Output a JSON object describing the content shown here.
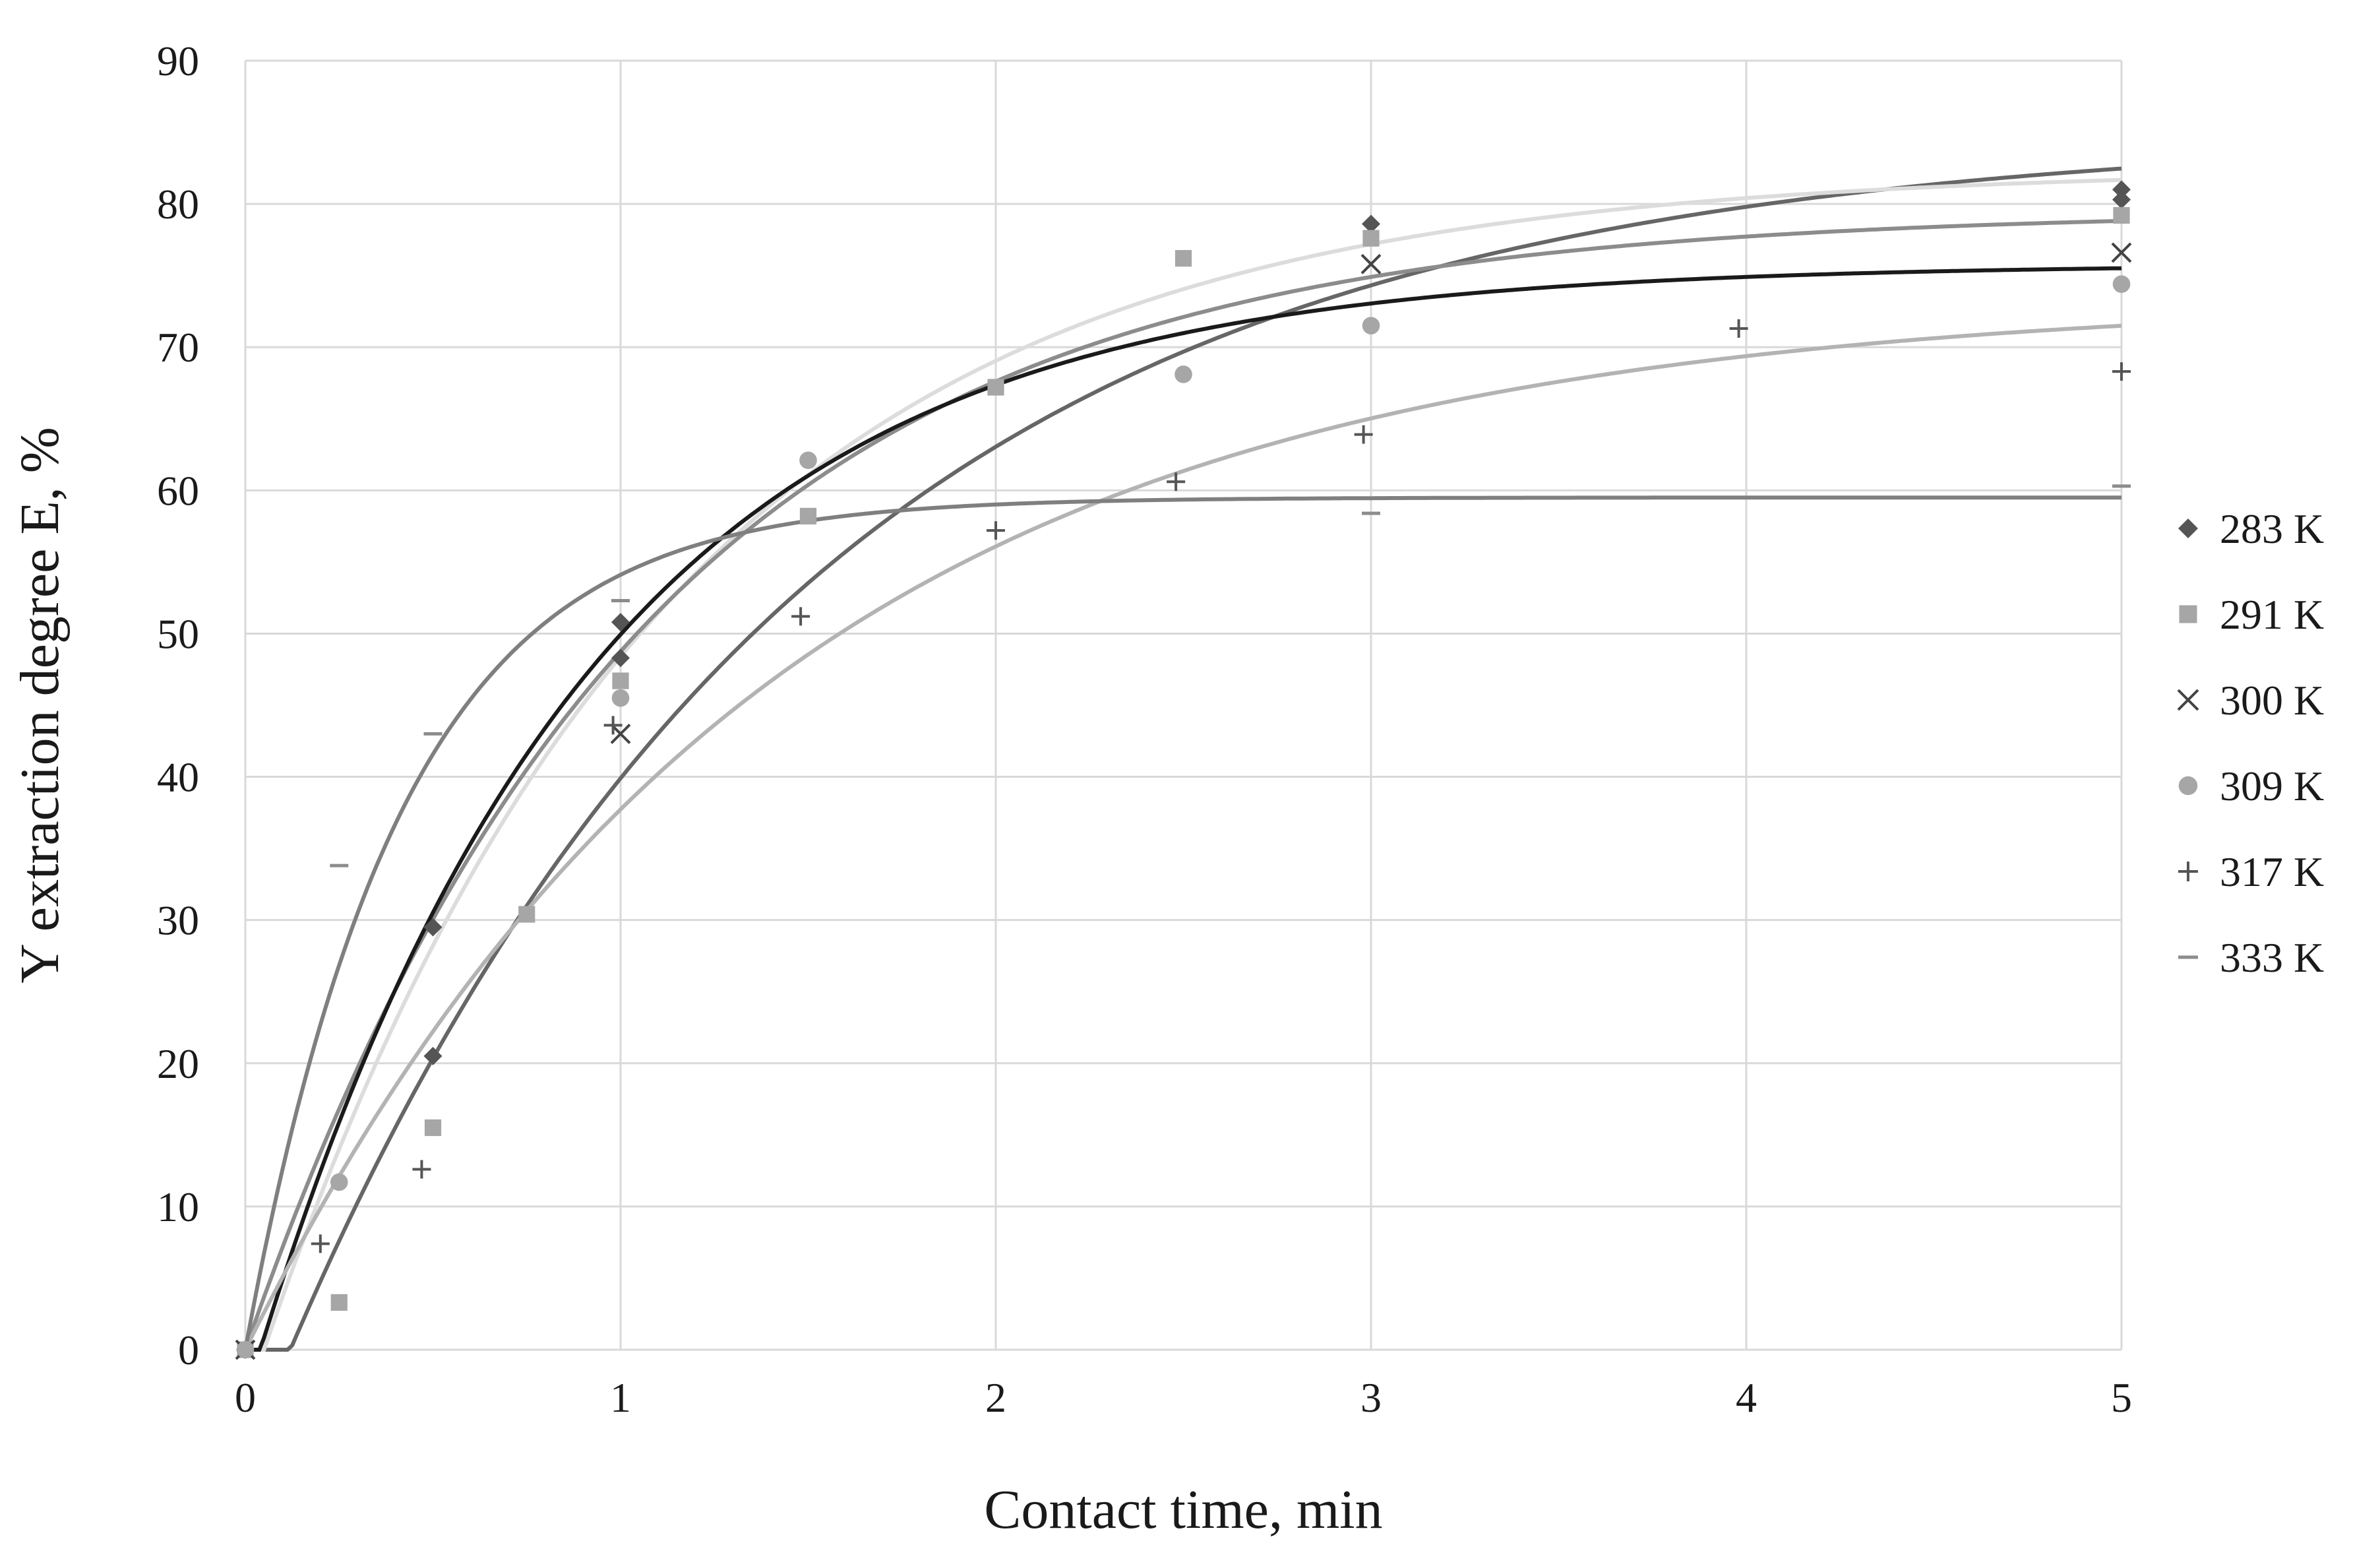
{
  "chart_data": {
    "type": "scatter",
    "title": "",
    "xlabel": "Contact time, min",
    "ylabel": "Y extraction degree E, %",
    "xlim": [
      0,
      5
    ],
    "ylim": [
      0,
      90
    ],
    "xticks": [
      0,
      1,
      2,
      3,
      4,
      5
    ],
    "yticks": [
      0,
      10,
      20,
      30,
      40,
      50,
      60,
      70,
      80,
      90
    ],
    "grid": true,
    "legend_position": "right",
    "series": [
      {
        "name": "283 K",
        "marker": "diamond",
        "color": "#555555",
        "points": [
          [
            0,
            0
          ],
          [
            0.5,
            29.5
          ],
          [
            0.5,
            20.5
          ],
          [
            1,
            50.8
          ],
          [
            1,
            48.3
          ],
          [
            3,
            78.6
          ],
          [
            5,
            81.0
          ],
          [
            5,
            80.3
          ]
        ],
        "fit": {
          "type": "exponential",
          "Emax": 85.0,
          "k": 0.72,
          "t0": 0.12,
          "color": "#666666"
        }
      },
      {
        "name": "291 K",
        "marker": "square",
        "color": "#a6a6a6",
        "points": [
          [
            0,
            0
          ],
          [
            0.25,
            3.3
          ],
          [
            0.5,
            15.5
          ],
          [
            0.75,
            30.4
          ],
          [
            1,
            46.7
          ],
          [
            1.5,
            58.2
          ],
          [
            2,
            67.2
          ],
          [
            2.5,
            76.2
          ],
          [
            3,
            77.6
          ],
          [
            5,
            79.2
          ]
        ],
        "fit": {
          "type": "exponential",
          "Emax": 82.5,
          "k": 0.93,
          "t0": 0.05,
          "color": "#dcdcdc"
        }
      },
      {
        "name": "300 K",
        "marker": "x",
        "color": "#444444",
        "points": [
          [
            0,
            0
          ],
          [
            1,
            43.0
          ],
          [
            3,
            75.8
          ],
          [
            5,
            76.6
          ]
        ],
        "fit": {
          "type": "exponential",
          "Emax": 79.5,
          "k": 0.95,
          "t0": 0.0,
          "color": "#8c8c8c"
        }
      },
      {
        "name": "309 K",
        "marker": "circle",
        "color": "#a6a6a6",
        "points": [
          [
            0,
            0
          ],
          [
            0.25,
            11.7
          ],
          [
            1,
            45.5
          ],
          [
            1.5,
            62.1
          ],
          [
            2.5,
            68.1
          ],
          [
            3,
            71.5
          ],
          [
            5,
            74.4
          ]
        ],
        "fit": {
          "type": "exponential",
          "Emax": 75.8,
          "k": 1.12,
          "t0": 0.04,
          "color": "#1a1a1a"
        }
      },
      {
        "name": "317 K",
        "marker": "plus",
        "color": "#555555",
        "points": [
          [
            0.2,
            7.4
          ],
          [
            0.47,
            12.6
          ],
          [
            0.98,
            43.6
          ],
          [
            1.48,
            51.2
          ],
          [
            2,
            57.2
          ],
          [
            2.48,
            60.6
          ],
          [
            2.98,
            63.9
          ],
          [
            3.98,
            71.3
          ],
          [
            5,
            68.3
          ]
        ],
        "fit": {
          "type": "exponential",
          "Emax": 73.5,
          "k": 0.72,
          "t0": 0.0,
          "color": "#b3b3b3"
        }
      },
      {
        "name": "333 K",
        "marker": "dash",
        "color": "#8c8c8c",
        "points": [
          [
            0.25,
            33.8
          ],
          [
            0.5,
            43.0
          ],
          [
            1,
            52.3
          ],
          [
            3,
            58.4
          ],
          [
            5,
            60.3
          ]
        ],
        "fit": {
          "type": "exponential",
          "Emax": 59.5,
          "k": 2.4,
          "t0": 0.0,
          "color": "#7f7f7f"
        }
      }
    ]
  }
}
